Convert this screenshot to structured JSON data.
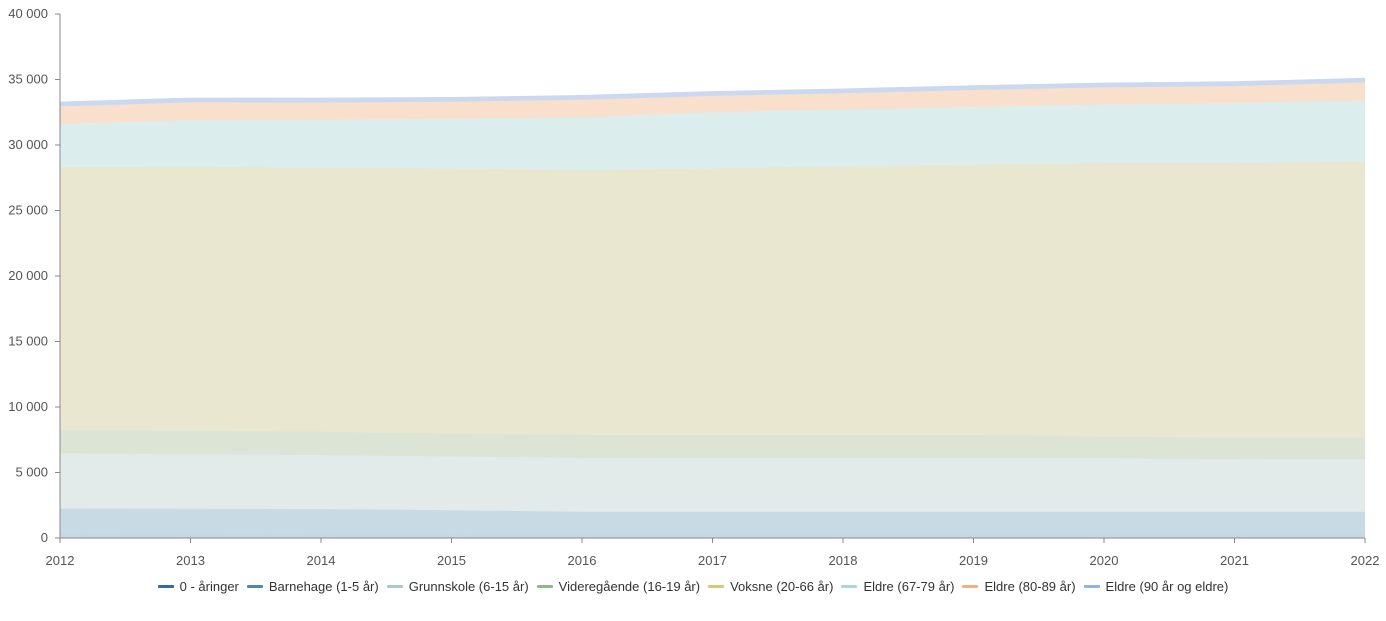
{
  "chart_data": {
    "type": "area",
    "stacked": true,
    "x": [
      "2012",
      "2013",
      "2014",
      "2015",
      "2016",
      "2017",
      "2018",
      "2019",
      "2020",
      "2021",
      "2022"
    ],
    "ylim": [
      0,
      40000
    ],
    "yticks": [
      0,
      5000,
      10000,
      15000,
      20000,
      25000,
      30000,
      35000,
      40000
    ],
    "ytick_labels": [
      "0",
      "5 000",
      "10 000",
      "15 000",
      "20 000",
      "25 000",
      "30 000",
      "35 000",
      "40 000"
    ],
    "grid": false,
    "legend_position": "bottom-center",
    "series": [
      {
        "name": "0 - åringer",
        "color": "#2f6f99",
        "fill": "#c5d8e3",
        "values": [
          350,
          340,
          330,
          320,
          310,
          300,
          300,
          300,
          300,
          290,
          290
        ]
      },
      {
        "name": "Barnehage (1-5 år)",
        "color": "#4a8aad",
        "fill": "#c8dbe4",
        "values": [
          1900,
          1900,
          1880,
          1800,
          1700,
          1700,
          1700,
          1700,
          1700,
          1720,
          1710
        ]
      },
      {
        "name": "Grunnskole (6-15 år)",
        "color": "#a9c7d4",
        "fill": "#e3ebea",
        "values": [
          4200,
          4150,
          4100,
          4100,
          4100,
          4100,
          4100,
          4100,
          4100,
          4000,
          4000
        ]
      },
      {
        "name": "Videregående (16-19 år)",
        "color": "#8cba8c",
        "fill": "#dce5d5",
        "values": [
          1800,
          1800,
          1800,
          1750,
          1750,
          1750,
          1750,
          1750,
          1650,
          1650,
          1650
        ]
      },
      {
        "name": "Voksne (20-66 år)",
        "color": "#d6c77a",
        "fill": "#e9e7cf",
        "values": [
          20050,
          20160,
          20130,
          20230,
          20240,
          20350,
          20550,
          20650,
          20850,
          20940,
          21070
        ]
      },
      {
        "name": "Eldre (67-79 år)",
        "color": "#a6d8d8",
        "fill": "#dbeeed",
        "values": [
          3300,
          3550,
          3700,
          3800,
          4000,
          4300,
          4300,
          4400,
          4500,
          4600,
          4700
        ]
      },
      {
        "name": "Eldre (80-89 år)",
        "color": "#f3b07e",
        "fill": "#f8e0cd",
        "values": [
          1350,
          1350,
          1300,
          1300,
          1350,
          1250,
          1250,
          1300,
          1300,
          1300,
          1350
        ]
      },
      {
        "name": "Eldre (90 år og eldre)",
        "color": "#8fb3e2",
        "fill": "#cad9ef",
        "values": [
          250,
          250,
          260,
          250,
          250,
          250,
          250,
          250,
          250,
          250,
          250
        ]
      }
    ]
  }
}
